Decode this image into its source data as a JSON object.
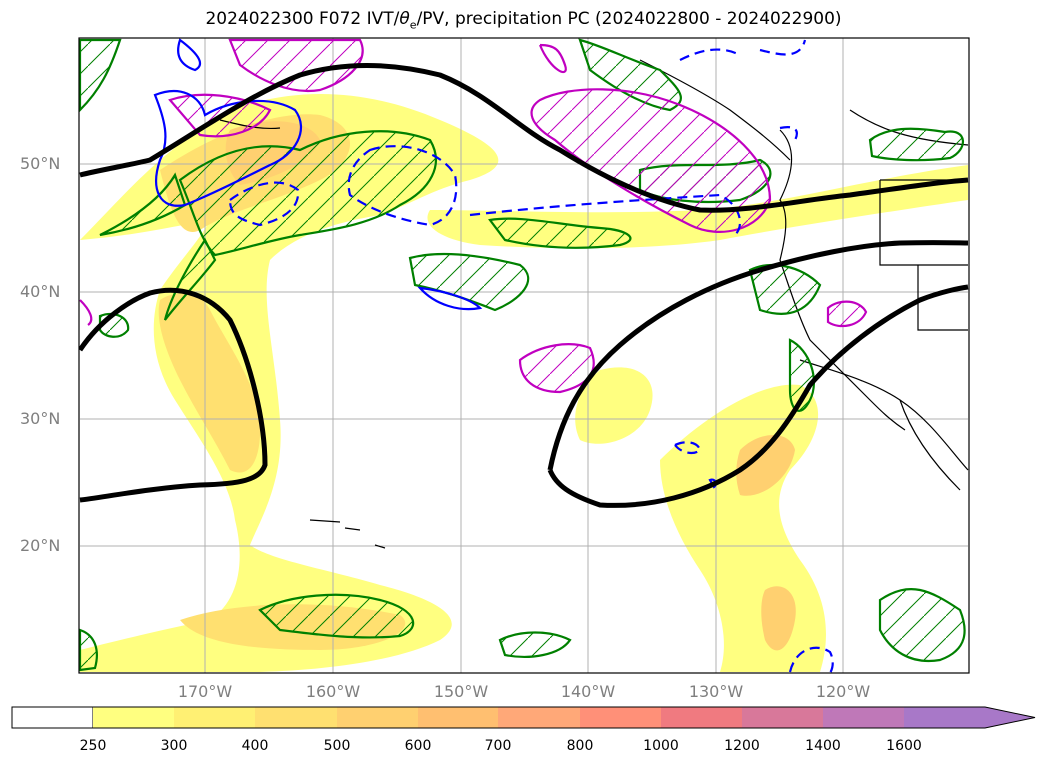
{
  "title": "2024022300 F072 IVT/",
  "title_theta": "θ",
  "title_e": "e",
  "title_rest": "/PV, precipitation PC (2024022800 - 2024022900)",
  "latitude_labels": [
    "50°N",
    "40°N",
    "30°N",
    "20°N"
  ],
  "longitude_labels": [
    "170°W",
    "160°W",
    "150°W",
    "140°W",
    "130°W",
    "120°W"
  ],
  "colorbar": {
    "labels": [
      "250",
      "300",
      "400",
      "500",
      "600",
      "700",
      "800",
      "1000",
      "1200",
      "1400",
      "1600"
    ],
    "colors": [
      "#ffff80",
      "#fff073",
      "#ffe070",
      "#ffd070",
      "#ffbf70",
      "#ffa878",
      "#ff9078",
      "#f07a80",
      "#d8789a",
      "#bf78b8",
      "#a878c8"
    ]
  },
  "colors": {
    "pv_contour": "#008000",
    "theta_e_contour": "#c000c0",
    "ivt_contour_pos": "#0000ff",
    "jet_contour": "#000000",
    "gridline": "#b0b0b0",
    "coastline": "#000000"
  }
}
